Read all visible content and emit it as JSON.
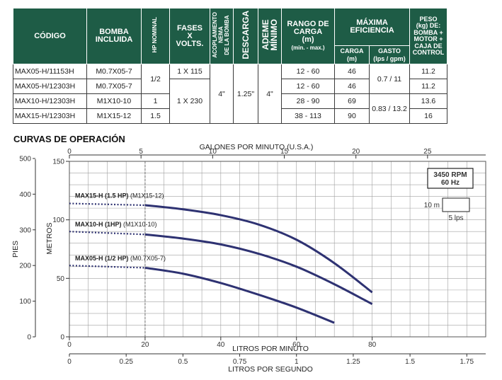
{
  "table": {
    "headers": {
      "codigo": "CÓDIGO",
      "bomba_l1": "BOMBA",
      "bomba_l2": "INCLUIDA",
      "hp_nominal": "HP NOMINAL",
      "fases_l1": "FASES",
      "fases_l2": "X",
      "fases_l3": "VOLTS.",
      "acoplamiento_l1": "ACOPLAMIENTO",
      "acoplamiento_l2": "NEMA",
      "acoplamiento_l3": "DE LA BOMBA",
      "descarga": "DESCARGA",
      "ademe_l1": "ADEME",
      "ademe_l2": "MÍNIMO",
      "rango_l1": "RANGO DE",
      "rango_l2": "CARGA",
      "rango_l3": "(m)",
      "rango_l4": "(min. - max.)",
      "maxima_l1": "MÁXIMA",
      "maxima_l2": "EFICIENCIA",
      "carga_l1": "CARGA",
      "carga_l2": "(m)",
      "gasto_l1": "GASTO",
      "gasto_l2": "(lps / gpm)",
      "peso_l1": "PESO",
      "peso_l2": "(kg) DE:",
      "peso_l3": "BOMBA +",
      "peso_l4": "MOTOR +",
      "peso_l5": "CAJA DE",
      "peso_l6": "CONTROL"
    },
    "rows": [
      {
        "codigo": "MAX05-H/11153H",
        "bomba": "M0.7X05-7",
        "rango": "12 - 60",
        "carga": "46",
        "peso": "11.2"
      },
      {
        "codigo": "MAX05-H/12303H",
        "bomba": "M0.7X05-7",
        "rango": "12 - 60",
        "carga": "46",
        "peso": "11.2"
      },
      {
        "codigo": "MAX10-H/12303H",
        "bomba": "M1X10-10",
        "rango": "28 - 90",
        "carga": "69",
        "peso": "13.6"
      },
      {
        "codigo": "MAX15-H/12303H",
        "bomba": "M1X15-12",
        "rango": "38 - 113",
        "carga": "90",
        "peso": "16"
      }
    ],
    "merged": {
      "hp_half": "1/2",
      "hp_one": "1",
      "hp_one_half": "1.5",
      "fases_115": "1 X 115",
      "fases_230": "1 X 230",
      "acoplamiento": "4\"",
      "descarga": "1.25\"",
      "ademe": "4\"",
      "gasto_a": "0.7 / 11",
      "gasto_b": "0.83 / 13.2"
    }
  },
  "section_title": "CURVAS DE OPERACIÓN",
  "chart_data": {
    "type": "line",
    "x": {
      "label": "LITROS POR MINUTO",
      "range": [
        0,
        110
      ],
      "ticks": [
        0,
        20,
        40,
        60,
        80
      ],
      "tick_labels": [
        "0",
        "20",
        "40",
        "60",
        "80"
      ]
    },
    "x_top": {
      "label": "GALONES POR MINUTO (U.S.A.)",
      "range": [
        0,
        29.06
      ],
      "ticks": [
        0,
        5,
        10,
        15,
        20,
        25
      ],
      "tick_labels": [
        "0",
        "5",
        "10",
        "15",
        "20",
        "25"
      ]
    },
    "x_bottom2": {
      "label": "LITROS POR SEGUNDO",
      "range": [
        0,
        1.8333
      ],
      "ticks": [
        0,
        0.25,
        0.5,
        0.75,
        1,
        1.25,
        1.5,
        1.75
      ],
      "tick_labels": [
        "0",
        "0.25",
        "0.5",
        "0.75",
        "1",
        "1.25",
        "1.5",
        "1.75"
      ]
    },
    "y": {
      "label": "METROS",
      "range": [
        0,
        150
      ],
      "ticks": [
        0,
        50,
        100,
        150
      ],
      "tick_labels": [
        "0",
        "50",
        "100",
        "150"
      ]
    },
    "y_left": {
      "label": "PIES",
      "range": [
        0,
        492
      ],
      "ticks": [
        0,
        100,
        200,
        300,
        400,
        500
      ],
      "tick_labels": [
        "0",
        "100",
        "200",
        "300",
        "400",
        "500"
      ]
    },
    "series": [
      {
        "name": "MAX15-H (1.5 HP)",
        "model": "(M1X15-12)",
        "dotted": {
          "x": [
            0,
            20
          ],
          "y": [
            114,
            112.5
          ]
        },
        "solid": {
          "x": [
            20,
            30,
            40,
            50,
            60,
            70,
            80
          ],
          "y": [
            112.5,
            109,
            104,
            96,
            83,
            63,
            38
          ]
        }
      },
      {
        "name": "MAX10-H (1HP)",
        "model": "(M1X10-10)",
        "dotted": {
          "x": [
            0,
            20
          ],
          "y": [
            90,
            87.5
          ]
        },
        "solid": {
          "x": [
            20,
            30,
            40,
            50,
            60,
            70,
            80
          ],
          "y": [
            87.5,
            84,
            79,
            71,
            60,
            45,
            28
          ]
        }
      },
      {
        "name": "MAX05-H (1/2 HP)",
        "model": "(M0.7X05-7)",
        "dotted": {
          "x": [
            0,
            20
          ],
          "y": [
            61,
            59
          ]
        },
        "solid": {
          "x": [
            20,
            30,
            40,
            50,
            60,
            70
          ],
          "y": [
            59,
            54,
            46,
            36,
            25,
            12
          ]
        }
      }
    ],
    "grid": true,
    "reference_line_x": 20,
    "legend_box": {
      "rpm": "3450 RPM",
      "hz": "60 Hz",
      "scale_y": "10 m",
      "scale_x": "5 lps"
    },
    "colors": {
      "curve": "#2e3272",
      "grid": "#a0a0a0",
      "header": "#1e5c46"
    }
  }
}
